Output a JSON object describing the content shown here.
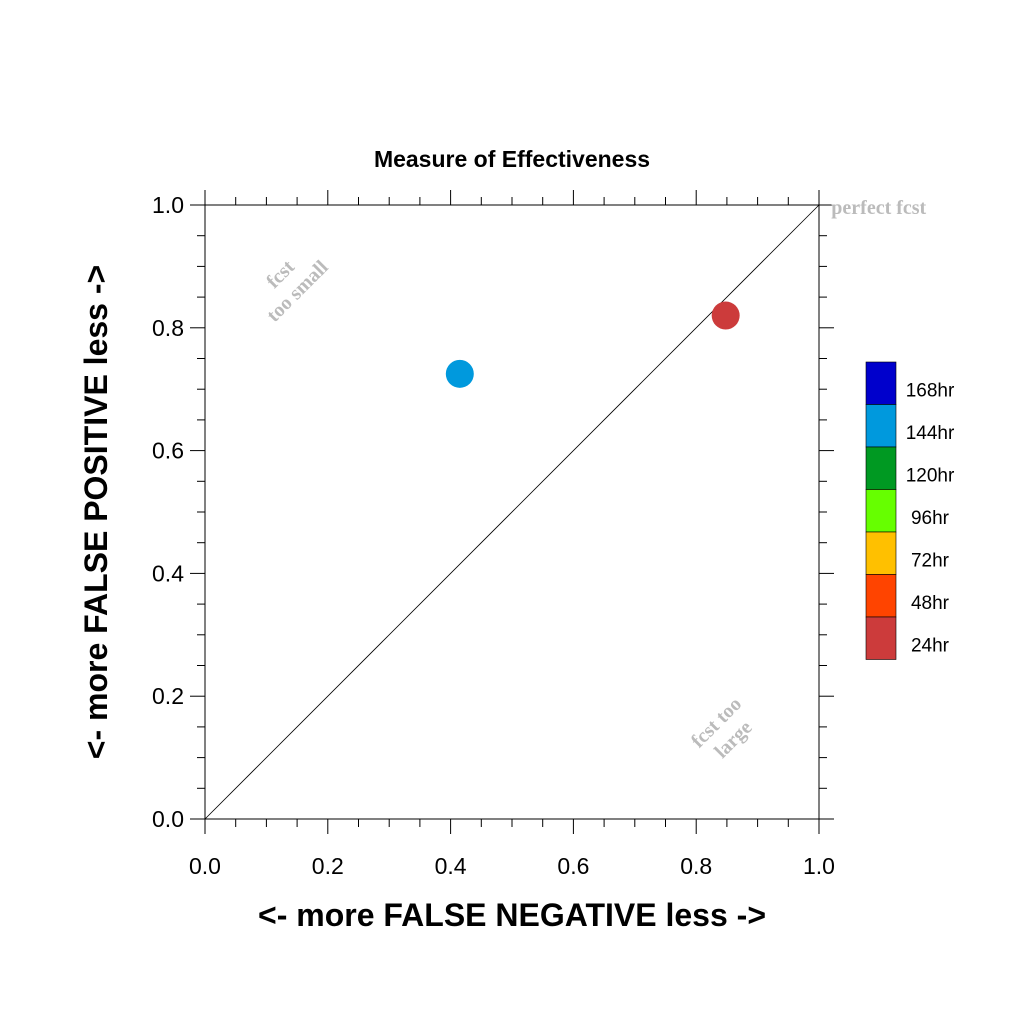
{
  "chart_data": {
    "type": "scatter",
    "title": "Measure of Effectiveness",
    "xlabel": "<- more   FALSE NEGATIVE   less ->",
    "ylabel": "<- more   FALSE POSITIVE   less ->",
    "xlim": [
      0,
      1
    ],
    "ylim": [
      0,
      1
    ],
    "x_ticks": [
      "0.0",
      "0.2",
      "0.4",
      "0.6",
      "0.8",
      "1.0"
    ],
    "y_ticks": [
      "0.0",
      "0.2",
      "0.4",
      "0.6",
      "0.8",
      "1.0"
    ],
    "grid": false,
    "reference_line": {
      "from": [
        0,
        0
      ],
      "to": [
        1,
        1
      ]
    },
    "points": [
      {
        "series": "144hr",
        "x": 0.415,
        "y": 0.725,
        "color": "#0099dd"
      },
      {
        "series": "24hr",
        "x": 0.848,
        "y": 0.82,
        "color": "#cc3b3b"
      }
    ],
    "annotations": [
      {
        "lines": [
          "fcst",
          "too small"
        ],
        "x": 0.13,
        "y": 0.88,
        "rotation": -45,
        "color": "#bbbbbb"
      },
      {
        "lines": [
          "fcst too",
          "large"
        ],
        "x": 0.84,
        "y": 0.15,
        "rotation": -45,
        "color": "#bbbbbb"
      },
      {
        "lines": [
          "perfect fcst"
        ],
        "x": 1.02,
        "y": 0.985,
        "rotation": 0,
        "color": "#bbbbbb"
      }
    ],
    "legend": {
      "placement": "right",
      "entries": [
        {
          "label": "168hr",
          "color": "#0000cc"
        },
        {
          "label": "144hr",
          "color": "#0099dd"
        },
        {
          "label": "120hr",
          "color": "#009922"
        },
        {
          "label": "96hr",
          "color": "#66ff00"
        },
        {
          "label": "72hr",
          "color": "#ffc000"
        },
        {
          "label": "48hr",
          "color": "#ff4400"
        },
        {
          "label": "24hr",
          "color": "#cc3b3b"
        }
      ]
    }
  }
}
